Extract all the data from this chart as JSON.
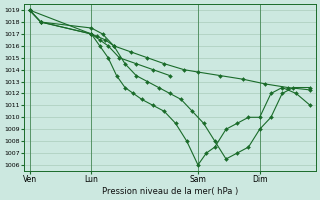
{
  "bg_color": "#cce8e0",
  "grid_color": "#aaccbb",
  "line_color": "#1a6b2a",
  "marker_color": "#1a6b2a",
  "xlabel_text": "Pression niveau de la mer( hPa )",
  "ylim": [
    1005.5,
    1019.5
  ],
  "yticks": [
    1006,
    1007,
    1008,
    1009,
    1010,
    1011,
    1012,
    1013,
    1014,
    1015,
    1016,
    1017,
    1018,
    1019
  ],
  "xtick_labels": [
    "Ven",
    "Lun",
    "Sam",
    "Dim"
  ],
  "xtick_positions": [
    0.0,
    0.22,
    0.6,
    0.82
  ],
  "xlim": [
    -0.02,
    1.02
  ],
  "series": {
    "line1_x": [
      0.0,
      0.04,
      0.22,
      0.25,
      0.28,
      0.32,
      0.38,
      0.44,
      0.5
    ],
    "line1_y": [
      1019.0,
      1018.0,
      1017.0,
      1016.5,
      1016.0,
      1015.0,
      1014.5,
      1014.0,
      1013.5
    ],
    "line2_x": [
      0.0,
      0.22,
      0.24,
      0.27,
      0.3,
      0.36,
      0.42,
      0.48,
      0.55,
      0.6,
      0.68,
      0.76,
      0.84,
      0.92,
      1.0
    ],
    "line2_y": [
      1019.0,
      1017.0,
      1016.8,
      1016.5,
      1016.0,
      1015.5,
      1015.0,
      1014.5,
      1014.0,
      1013.8,
      1013.5,
      1013.2,
      1012.8,
      1012.5,
      1012.3
    ],
    "line3_x": [
      0.0,
      0.04,
      0.22,
      0.25,
      0.28,
      0.31,
      0.34,
      0.37,
      0.4,
      0.44,
      0.48,
      0.52,
      0.56,
      0.6,
      0.63,
      0.66,
      0.7,
      0.74,
      0.78,
      0.82,
      0.86,
      0.9,
      0.95,
      1.0
    ],
    "line3_y": [
      1019.0,
      1018.0,
      1017.0,
      1016.0,
      1015.0,
      1013.5,
      1012.5,
      1012.0,
      1011.5,
      1011.0,
      1010.5,
      1009.5,
      1008.0,
      1006.0,
      1007.0,
      1007.5,
      1009.0,
      1009.5,
      1010.0,
      1010.0,
      1012.0,
      1012.5,
      1012.0,
      1011.0
    ],
    "line4_x": [
      0.0,
      0.04,
      0.22,
      0.26,
      0.3,
      0.34,
      0.38,
      0.42,
      0.46,
      0.5,
      0.54,
      0.58,
      0.62,
      0.66,
      0.7,
      0.74,
      0.78,
      0.82,
      0.86,
      0.9,
      0.94,
      1.0
    ],
    "line4_y": [
      1019.0,
      1018.0,
      1017.5,
      1017.0,
      1016.0,
      1014.5,
      1013.5,
      1013.0,
      1012.5,
      1012.0,
      1011.5,
      1010.5,
      1009.5,
      1008.0,
      1006.5,
      1007.0,
      1007.5,
      1009.0,
      1010.0,
      1012.0,
      1012.5,
      1012.5
    ]
  }
}
